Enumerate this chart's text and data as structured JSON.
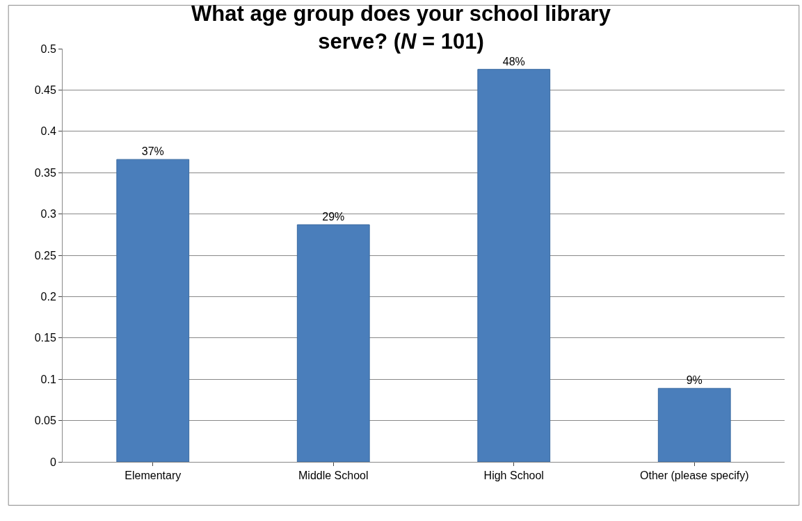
{
  "chart_data": {
    "type": "bar",
    "title": "What age group does your school library serve? (N = 101)",
    "categories": [
      "Elementary",
      "Middle School",
      "High School",
      "Other (please specify)"
    ],
    "values": [
      0.366,
      0.287,
      0.475,
      0.089
    ],
    "value_labels": [
      "37%",
      "29%",
      "48%",
      "9%"
    ],
    "color": "#4a7ebb",
    "ylim": [
      0,
      0.5
    ],
    "yticks": [
      0,
      0.05,
      0.1,
      0.15,
      0.2,
      0.25,
      0.3,
      0.35,
      0.4,
      0.45,
      0.5
    ],
    "grid": "y",
    "legend": false
  }
}
